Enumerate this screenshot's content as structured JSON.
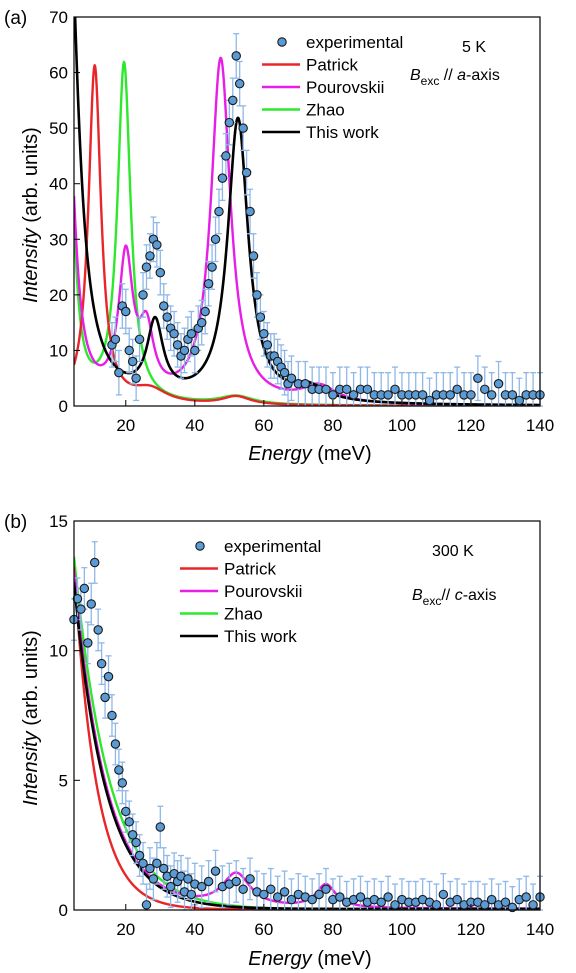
{
  "figure": {
    "panels": [
      "(a)",
      "(b)"
    ]
  },
  "chart_data": [
    {
      "type": "scatter",
      "panel": "(a)",
      "xlabel": {
        "italic": "Energy",
        "unit": "(meV)"
      },
      "ylabel": {
        "italic": "Intensity",
        "unit": "(arb. units)"
      },
      "xlim": [
        5,
        140
      ],
      "ylim": [
        0,
        70
      ],
      "xticks": [
        20,
        40,
        60,
        80,
        100,
        120,
        140
      ],
      "yticks": [
        0,
        10,
        20,
        30,
        40,
        50,
        60,
        70
      ],
      "grid": false,
      "legend_position": "top-right",
      "annotations": {
        "temperature": "5 K",
        "field_symbol": "B",
        "field_sub": "exc",
        "field_text": " // ",
        "axis_italic": "a",
        "axis_suffix": "-axis"
      },
      "legend": [
        {
          "name": "experimental",
          "kind": "marker"
        },
        {
          "name": "Patrick",
          "color": "#e8262a"
        },
        {
          "name": "Pourovskii",
          "color": "#e61ee6"
        },
        {
          "name": "Zhao",
          "color": "#2ee82e"
        },
        {
          "name": "This work",
          "color": "#000000"
        }
      ],
      "series": [
        {
          "name": "experimental",
          "marker_color": "#5b9bd5",
          "errorbar_color": "#8fb8e8",
          "x": [
            16,
            17,
            18,
            19,
            20,
            21,
            22,
            23,
            24,
            25,
            26,
            27,
            28,
            29,
            30,
            31,
            32,
            33,
            34,
            35,
            36,
            37,
            38,
            39,
            40,
            41,
            42,
            43,
            44,
            45,
            46,
            47,
            48,
            49,
            50,
            51,
            52,
            53,
            54,
            55,
            56,
            57,
            58,
            59,
            60,
            61,
            62,
            63,
            64,
            65,
            66,
            67,
            68,
            70,
            72,
            74,
            76,
            78,
            80,
            82,
            84,
            86,
            88,
            90,
            92,
            94,
            96,
            98,
            100,
            102,
            104,
            106,
            108,
            110,
            112,
            114,
            116,
            118,
            120,
            122,
            124,
            126,
            128,
            130,
            132,
            134,
            136,
            138,
            140
          ],
          "y": [
            11,
            12,
            6,
            18,
            17,
            10,
            8,
            5,
            12,
            20,
            25,
            27,
            30,
            29,
            24,
            18,
            16,
            14,
            13,
            11,
            9,
            10,
            12,
            13,
            10,
            14,
            15,
            17,
            22,
            25,
            30,
            35,
            41,
            45,
            51,
            55,
            63,
            58,
            50,
            42,
            35,
            27,
            20,
            16,
            13,
            11,
            9,
            9,
            8,
            7,
            6,
            4,
            5,
            4,
            4,
            3,
            3,
            3,
            2,
            3,
            3,
            2,
            3,
            3,
            2,
            2,
            2,
            3,
            2,
            2,
            2,
            2,
            1,
            2,
            2,
            2,
            3,
            2,
            2,
            5,
            3,
            2,
            4,
            2,
            2,
            1,
            2,
            2,
            2
          ],
          "yerr": 4
        },
        {
          "name": "Patrick",
          "color": "#e8262a",
          "peaks": [
            {
              "c": 11,
              "h": 61,
              "w": 2.2
            },
            {
              "c": 27,
              "h": 2.5,
              "w": 6
            },
            {
              "c": 52,
              "h": 1.5,
              "w": 5
            }
          ]
        },
        {
          "name": "Pourovskii",
          "color": "#e61ee6",
          "peaks": [
            {
              "c": 3,
              "h": 60,
              "w": 2.5
            },
            {
              "c": 20,
              "h": 25,
              "w": 2.5
            },
            {
              "c": 26,
              "h": 11,
              "w": 2.5
            },
            {
              "c": 47.5,
              "h": 62,
              "w": 3.4
            },
            {
              "c": 76,
              "h": 3,
              "w": 6
            }
          ]
        },
        {
          "name": "Zhao",
          "color": "#2ee82e",
          "peaks": [
            {
              "c": 3,
              "h": 75,
              "w": 1.8
            },
            {
              "c": 19.5,
              "h": 61,
              "w": 2.3
            },
            {
              "c": 52,
              "h": 1.5,
              "w": 6
            }
          ]
        },
        {
          "name": "This work",
          "color": "#000000",
          "peaks": [
            {
              "c": 3,
              "h": 100,
              "w": 3.5
            },
            {
              "c": 28.5,
              "h": 13,
              "w": 2.8
            },
            {
              "c": 52.5,
              "h": 51,
              "w": 3.6
            },
            {
              "c": 73,
              "h": 2.5,
              "w": 6
            }
          ]
        }
      ]
    },
    {
      "type": "scatter",
      "panel": "(b)",
      "xlabel": {
        "italic": "Energy",
        "unit": "(meV)"
      },
      "ylabel": {
        "italic": "Intensity",
        "unit": "(arb. units)"
      },
      "xlim": [
        5,
        140
      ],
      "ylim": [
        0,
        15
      ],
      "xticks": [
        20,
        40,
        60,
        80,
        100,
        120,
        140
      ],
      "yticks": [
        0,
        5,
        10,
        15
      ],
      "grid": false,
      "legend_position": "top-right",
      "annotations": {
        "temperature": "300 K",
        "field_symbol": "B",
        "field_sub": "exc",
        "field_text": "// ",
        "axis_italic": "c",
        "axis_suffix": "-axis"
      },
      "legend": [
        {
          "name": "experimental",
          "kind": "marker"
        },
        {
          "name": "Patrick",
          "color": "#e8262a"
        },
        {
          "name": "Pourovskii",
          "color": "#e61ee6"
        },
        {
          "name": "Zhao",
          "color": "#2ee82e"
        },
        {
          "name": "This work",
          "color": "#000000"
        }
      ],
      "series": [
        {
          "name": "experimental",
          "marker_color": "#5b9bd5",
          "errorbar_color": "#8fb8e8",
          "x": [
            5,
            6,
            7,
            8,
            9,
            10,
            11,
            12,
            13,
            14,
            15,
            16,
            17,
            18,
            19,
            20,
            21,
            22,
            23,
            24,
            25,
            26,
            27,
            28,
            29,
            30,
            31,
            32,
            33,
            34,
            35,
            36,
            37,
            38,
            39,
            40,
            42,
            44,
            46,
            48,
            50,
            52,
            54,
            56,
            58,
            60,
            62,
            64,
            66,
            68,
            70,
            72,
            74,
            76,
            78,
            80,
            82,
            84,
            86,
            88,
            90,
            92,
            94,
            96,
            98,
            100,
            102,
            104,
            106,
            108,
            110,
            112,
            114,
            116,
            118,
            120,
            122,
            124,
            126,
            128,
            130,
            132,
            134,
            136,
            138,
            140
          ],
          "y": [
            11.2,
            12.0,
            11.6,
            12.4,
            10.3,
            11.8,
            13.4,
            10.8,
            9.5,
            8.2,
            9.0,
            7.5,
            6.4,
            5.4,
            4.9,
            3.8,
            3.4,
            2.9,
            2.6,
            2.1,
            1.8,
            0.2,
            1.6,
            1.2,
            1.8,
            3.2,
            1.6,
            1.3,
            0.9,
            1.4,
            1.1,
            1.3,
            0.7,
            1.2,
            0.6,
            1.0,
            0.9,
            1.1,
            1.5,
            0.9,
            1.0,
            1.1,
            0.8,
            1.2,
            0.7,
            0.6,
            0.8,
            0.5,
            0.7,
            0.4,
            0.6,
            0.5,
            0.4,
            0.6,
            0.8,
            0.4,
            0.5,
            0.3,
            0.4,
            0.5,
            0.3,
            0.4,
            0.3,
            0.5,
            0.2,
            0.4,
            0.3,
            0.3,
            0.4,
            0.3,
            0.2,
            0.6,
            0.3,
            0.4,
            0.2,
            0.3,
            0.3,
            0.2,
            0.4,
            0.2,
            0.3,
            0.1,
            0.4,
            0.5,
            0.2,
            0.5
          ],
          "yerr": 0.8
        },
        {
          "name": "Patrick",
          "color": "#e8262a",
          "decay": {
            "a": 13.2,
            "x0": 5,
            "w": 6.5,
            "base": 0.02
          }
        },
        {
          "name": "Pourovskii",
          "color": "#e61ee6",
          "decay": {
            "a": 13.0,
            "x0": 5,
            "w": 9.2,
            "base": 0.05
          },
          "peaks": [
            {
              "c": 52,
              "h": 1.3,
              "w": 5
            },
            {
              "c": 78,
              "h": 0.9,
              "w": 3.5
            }
          ]
        },
        {
          "name": "Zhao",
          "color": "#2ee82e",
          "decay": {
            "a": 13.6,
            "x0": 5,
            "w": 10.2,
            "base": 0.02
          }
        },
        {
          "name": "This work",
          "color": "#000000",
          "decay": {
            "a": 12.6,
            "x0": 5,
            "w": 9.2,
            "base": 0.04
          }
        }
      ]
    }
  ]
}
